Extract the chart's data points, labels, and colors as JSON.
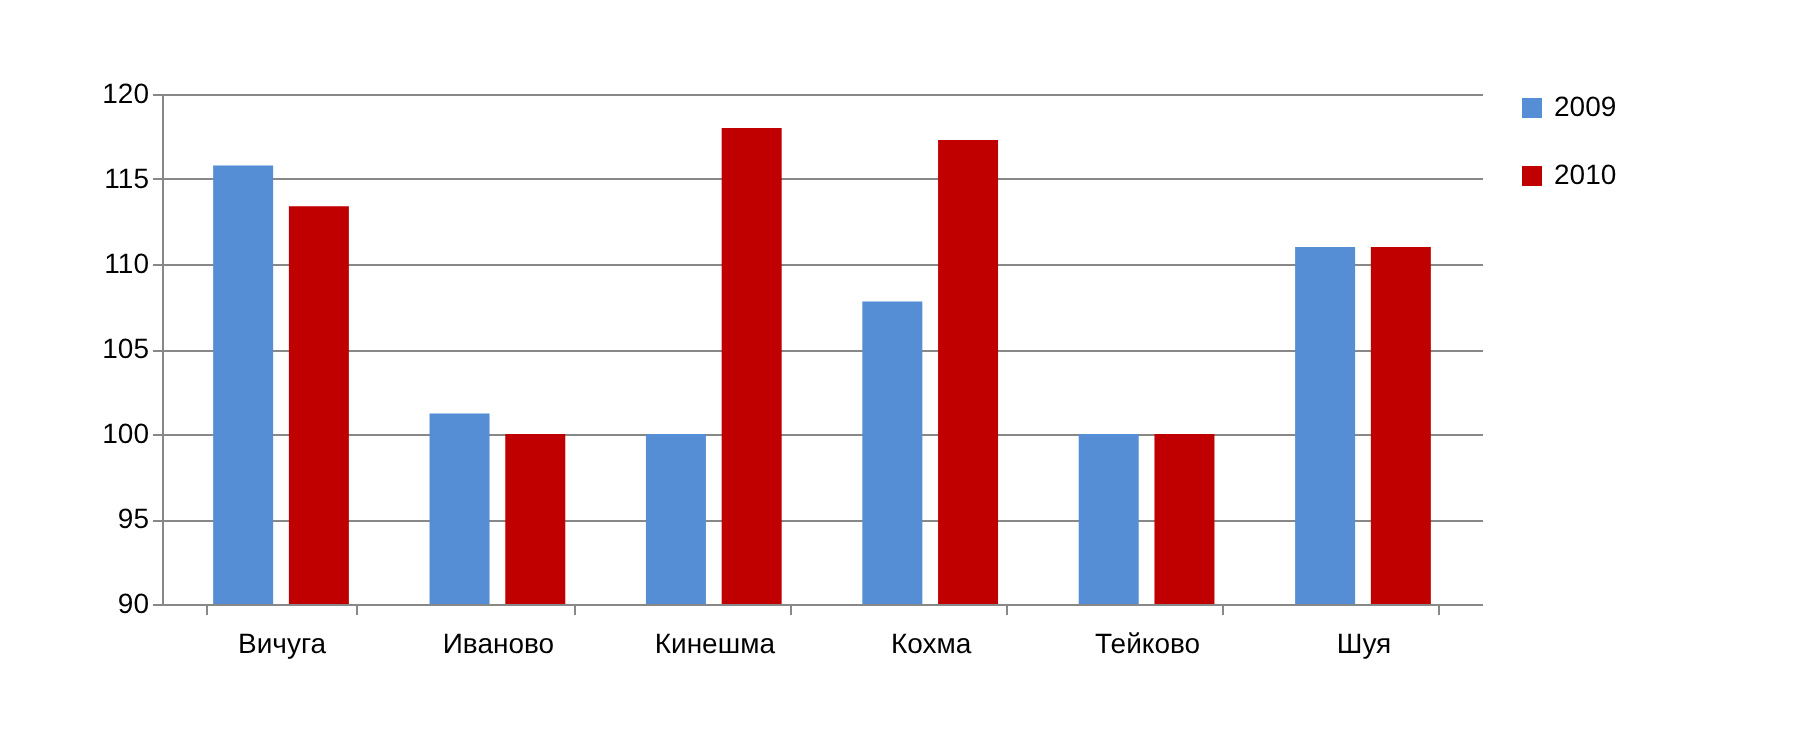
{
  "chart_data": {
    "type": "bar",
    "categories": [
      "Вичуга",
      "Иваново",
      "Кинешма",
      "Кохма",
      "Тейково",
      "Шуя"
    ],
    "series": [
      {
        "name": "2009",
        "color": "#558ed5",
        "values": [
          115.8,
          101.2,
          100,
          107.8,
          100,
          111
        ]
      },
      {
        "name": "2010",
        "color": "#c00000",
        "values": [
          113.4,
          100,
          118,
          117.3,
          100,
          111
        ]
      }
    ],
    "ylim": [
      90,
      120
    ],
    "yticks": [
      90,
      95,
      100,
      105,
      110,
      115,
      120
    ],
    "grid": "y",
    "legend": "right"
  }
}
